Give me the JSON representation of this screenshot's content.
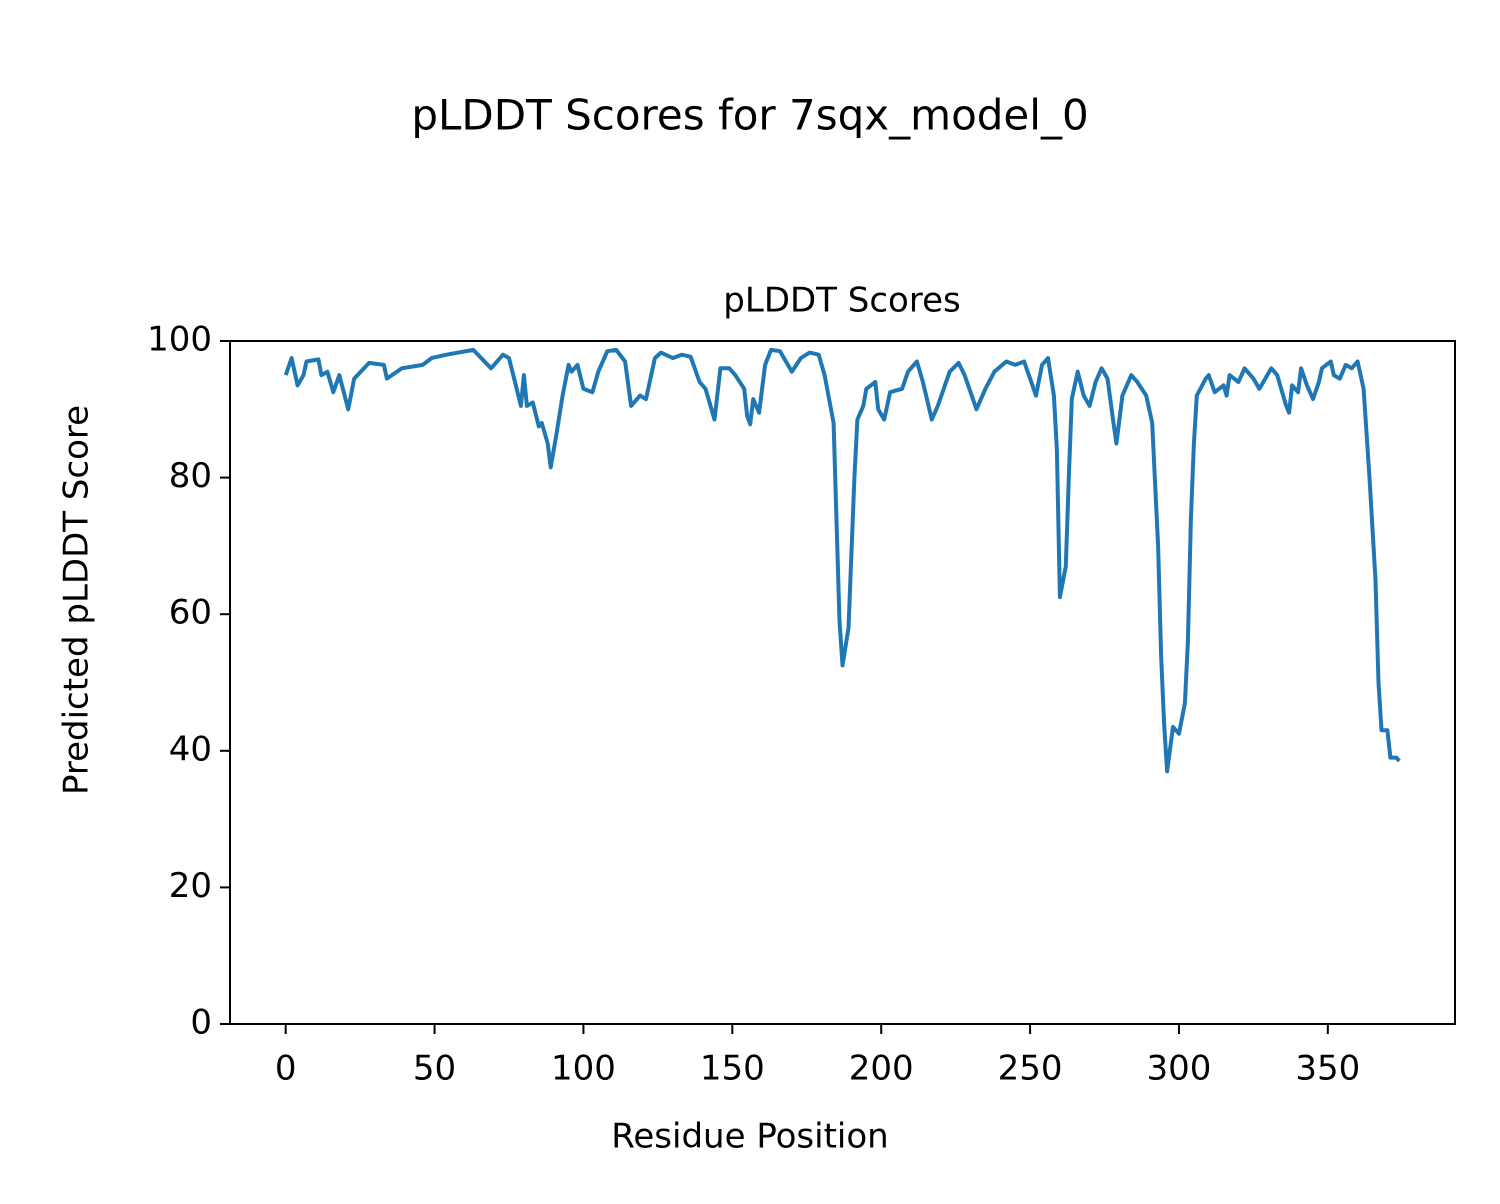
{
  "chart_data": {
    "type": "line",
    "suptitle": "pLDDT Scores for 7sqx_model_0",
    "title": "pLDDT Scores",
    "xlabel": "Residue Position",
    "ylabel": "Predicted pLDDT Score",
    "xlim": [
      -18.7,
      392.7
    ],
    "xticks": [
      0,
      50,
      100,
      150,
      200,
      250,
      300,
      350
    ],
    "ylim": [
      0,
      100
    ],
    "yticks": [
      0,
      20,
      40,
      60,
      80,
      100
    ],
    "series": [
      {
        "name": "pLDDT",
        "color": "#1f77b4",
        "x": [
          0,
          2,
          4,
          6,
          7,
          11,
          12,
          14,
          16,
          18,
          21,
          23,
          28,
          33,
          34,
          39,
          46,
          49,
          54,
          63,
          69,
          73,
          75,
          77,
          79,
          80,
          81,
          83,
          85,
          86,
          88,
          89,
          91,
          93,
          95,
          96,
          98,
          100,
          103,
          105,
          108,
          111,
          114,
          116,
          119,
          121,
          124,
          126,
          130,
          133,
          136,
          139,
          141,
          144,
          146,
          149,
          151,
          154,
          155,
          156,
          157,
          159,
          161,
          163,
          166,
          170,
          173,
          176,
          179,
          181,
          184,
          186,
          187,
          189,
          191,
          192,
          194,
          195,
          198,
          199,
          201,
          203,
          207,
          209,
          212,
          214,
          217,
          219,
          223,
          226,
          228,
          232,
          235,
          238,
          242,
          245,
          248,
          250,
          252,
          254,
          256,
          258,
          259,
          260,
          262,
          263,
          264,
          266,
          268,
          270,
          272,
          274,
          276,
          278,
          279,
          281,
          284,
          286,
          289,
          291,
          293,
          294,
          295,
          296,
          298,
          300,
          302,
          303,
          304,
          305,
          306,
          309,
          310,
          312,
          315,
          316,
          317,
          320,
          322,
          325,
          327,
          331,
          333,
          336,
          337,
          338,
          340,
          341,
          343,
          345,
          347,
          348,
          351,
          352,
          354,
          356,
          358,
          360,
          362,
          364,
          366,
          367,
          368,
          370,
          371,
          373,
          374
        ],
        "values": [
          95,
          97.5,
          93.5,
          95,
          97,
          97.3,
          95,
          95.5,
          92.5,
          95,
          90,
          94.5,
          96.8,
          96.5,
          94.5,
          96,
          96.5,
          97.5,
          98,
          98.7,
          96,
          98,
          97.5,
          94,
          90.5,
          95,
          90.5,
          91,
          87.5,
          88,
          85,
          81.5,
          86.5,
          92,
          96.5,
          95.5,
          96.5,
          93,
          92.5,
          95.5,
          98.5,
          98.7,
          97,
          90.5,
          92,
          91.5,
          97.5,
          98.3,
          97.5,
          98,
          97.7,
          94,
          93,
          88.5,
          96,
          96,
          95,
          93,
          89,
          87.8,
          91.5,
          89.5,
          96.5,
          98.7,
          98.5,
          95.5,
          97.5,
          98.3,
          98,
          95,
          88,
          59,
          52.5,
          58,
          80,
          88.5,
          90.5,
          93,
          94,
          90,
          88.5,
          92.5,
          93,
          95.5,
          97,
          94,
          88.5,
          90.5,
          95.5,
          96.8,
          95,
          90,
          93,
          95.5,
          97,
          96.5,
          97,
          94.5,
          92,
          96.5,
          97.5,
          92,
          84,
          62.5,
          67,
          80,
          91.5,
          95.5,
          92,
          90.5,
          94,
          96,
          94.5,
          88,
          85,
          92,
          95,
          94,
          92,
          88,
          70,
          54,
          44,
          37,
          43.5,
          42.5,
          47,
          56,
          74,
          85,
          92,
          94.5,
          95,
          92.5,
          93.5,
          92,
          95,
          94,
          96,
          94.5,
          93,
          96,
          95,
          90.5,
          89.5,
          93.5,
          92.5,
          96,
          93.5,
          91.5,
          94,
          96,
          97,
          95,
          94.5,
          96.5,
          96,
          97,
          93,
          80,
          65,
          50,
          43,
          43,
          39,
          39,
          38.5
        ]
      }
    ]
  }
}
